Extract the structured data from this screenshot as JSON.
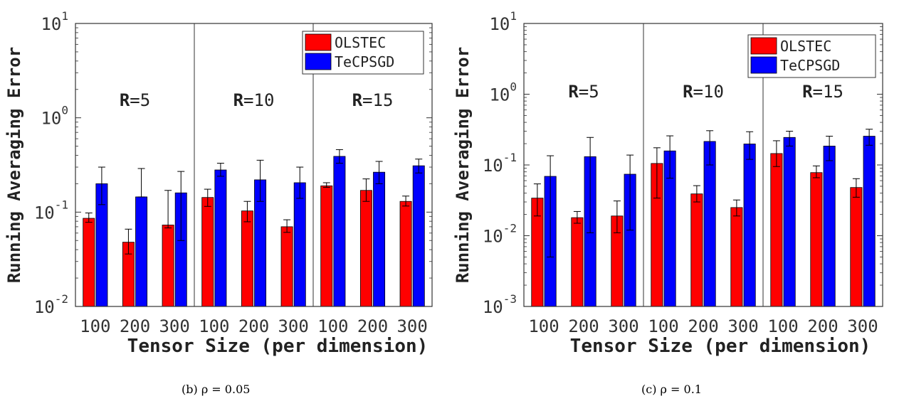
{
  "chart_data": [
    {
      "type": "bar",
      "panel": "b",
      "caption": "(b) ρ = 0.05",
      "ylabel": "Running Averaging Error",
      "xlabel": "Tensor Size (per dimension)",
      "yscale": "log",
      "ylim": [
        0.01,
        10
      ],
      "yticks": [
        0.01,
        0.1,
        1,
        10
      ],
      "ytick_labels": [
        {
          "base": "10",
          "exp": "-2"
        },
        {
          "base": "10",
          "exp": "-1"
        },
        {
          "base": "10",
          "exp": "0"
        },
        {
          "base": "10",
          "exp": "1"
        }
      ],
      "categories": [
        "100",
        "200",
        "300",
        "100",
        "200",
        "300",
        "100",
        "200",
        "300"
      ],
      "groups": [
        {
          "label": "R",
          "suffix": "=5"
        },
        {
          "label": "R",
          "suffix": "=10"
        },
        {
          "label": "R",
          "suffix": "=15"
        }
      ],
      "legend_position": "top-right",
      "series": [
        {
          "name": "OLSTEC",
          "color": "#ff0000",
          "values": [
            0.086,
            0.048,
            0.073,
            0.143,
            0.103,
            0.07,
            0.19,
            0.17,
            0.13
          ],
          "err_low": [
            0.078,
            0.036,
            0.068,
            0.115,
            0.079,
            0.061,
            0.183,
            0.13,
            0.116
          ],
          "err_high": [
            0.098,
            0.066,
            0.17,
            0.175,
            0.13,
            0.083,
            0.205,
            0.225,
            0.148
          ]
        },
        {
          "name": "TeCPSGD",
          "color": "#0000ff",
          "values": [
            0.2,
            0.145,
            0.16,
            0.28,
            0.22,
            0.205,
            0.39,
            0.265,
            0.31
          ],
          "err_low": [
            0.12,
            0.145,
            0.05,
            0.24,
            0.13,
            0.14,
            0.33,
            0.2,
            0.26
          ],
          "err_high": [
            0.3,
            0.29,
            0.27,
            0.33,
            0.355,
            0.3,
            0.46,
            0.345,
            0.365
          ]
        }
      ]
    },
    {
      "type": "bar",
      "panel": "c",
      "caption": "(c) ρ = 0.1",
      "ylabel": "Running Averaging Error",
      "xlabel": "Tensor Size (per dimension)",
      "yscale": "log",
      "ylim": [
        0.001,
        10
      ],
      "yticks": [
        0.001,
        0.01,
        0.1,
        1,
        10
      ],
      "ytick_labels": [
        {
          "base": "10",
          "exp": "-3"
        },
        {
          "base": "10",
          "exp": "-2"
        },
        {
          "base": "10",
          "exp": "-1"
        },
        {
          "base": "10",
          "exp": "0"
        },
        {
          "base": "10",
          "exp": "1"
        }
      ],
      "categories": [
        "100",
        "200",
        "300",
        "100",
        "200",
        "300",
        "100",
        "200",
        "300"
      ],
      "groups": [
        {
          "label": "R",
          "suffix": "=5"
        },
        {
          "label": "R",
          "suffix": "=10"
        },
        {
          "label": "R",
          "suffix": "=15"
        }
      ],
      "legend_position": "top-right",
      "series": [
        {
          "name": "OLSTEC",
          "color": "#ff0000",
          "values": [
            0.034,
            0.018,
            0.019,
            0.105,
            0.039,
            0.025,
            0.145,
            0.078,
            0.048
          ],
          "err_low": [
            0.019,
            0.015,
            0.011,
            0.034,
            0.03,
            0.019,
            0.095,
            0.066,
            0.035
          ],
          "err_high": [
            0.054,
            0.022,
            0.031,
            0.175,
            0.051,
            0.032,
            0.22,
            0.097,
            0.064
          ]
        },
        {
          "name": "TeCPSGD",
          "color": "#0000ff",
          "values": [
            0.069,
            0.131,
            0.074,
            0.158,
            0.215,
            0.198,
            0.245,
            0.185,
            0.255
          ],
          "err_low": [
            0.005,
            0.011,
            0.012,
            0.065,
            0.1,
            0.12,
            0.185,
            0.115,
            0.19
          ],
          "err_high": [
            0.135,
            0.245,
            0.138,
            0.258,
            0.305,
            0.295,
            0.3,
            0.255,
            0.32
          ]
        }
      ]
    }
  ]
}
